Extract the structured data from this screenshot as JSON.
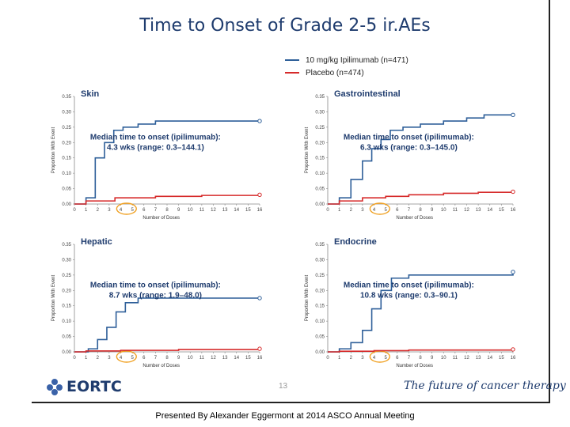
{
  "title": "Time to Onset of Grade 2-5 ir.AEs",
  "legend": [
    {
      "label": "10 mg/kg Ipilimumab (n=471)",
      "color": "#2e5f99"
    },
    {
      "label": "Placebo (n=474)",
      "color": "#d62b2b"
    }
  ],
  "footer": "Presented By Alexander Eggermont at 2014 ASCO Annual Meeting",
  "slide_number": "13",
  "logo_text": "EORTC",
  "tagline": "The future of cancer therapy",
  "highlight_color": "#f0a020",
  "chart_data": [
    {
      "type": "line",
      "step": true,
      "title": "Skin",
      "xlabel": "Number of Doses",
      "ylabel": "Proportion With Event",
      "xlim": [
        0,
        16
      ],
      "ylim": [
        0,
        0.35
      ],
      "x_ticks": [
        "0",
        "1",
        "2",
        "3",
        "4",
        "5",
        "6",
        "7",
        "8",
        "9",
        "10",
        "11",
        "12",
        "13",
        "14",
        "15",
        "16"
      ],
      "y_ticks": [
        "0.00",
        "0.05",
        "0.10",
        "0.15",
        "0.20",
        "0.25",
        "0.30",
        "0.35"
      ],
      "highlight_dose": 4.5,
      "median_text": [
        "Median time to onset (ipilimumab):",
        "4.3 wks (range: 0.3–144.1)"
      ],
      "series": [
        {
          "color": "#2e5f99",
          "x": [
            0,
            1,
            1.8,
            2.6,
            3.4,
            4.2,
            5.5,
            7,
            16
          ],
          "y": [
            0,
            0.02,
            0.15,
            0.2,
            0.24,
            0.25,
            0.26,
            0.27,
            0.27
          ]
        },
        {
          "color": "#d62b2b",
          "x": [
            0,
            1,
            3.5,
            7,
            11,
            16
          ],
          "y": [
            0,
            0.01,
            0.02,
            0.025,
            0.028,
            0.03
          ]
        }
      ]
    },
    {
      "type": "line",
      "step": true,
      "title": "Gastrointestinal",
      "xlabel": "Number of Doses",
      "ylabel": "Proportion With Event",
      "xlim": [
        0,
        16
      ],
      "ylim": [
        0,
        0.35
      ],
      "x_ticks": [
        "0",
        "1",
        "2",
        "3",
        "4",
        "5",
        "6",
        "7",
        "8",
        "9",
        "10",
        "11",
        "12",
        "13",
        "14",
        "15",
        "16"
      ],
      "y_ticks": [
        "0.00",
        "0.05",
        "0.10",
        "0.15",
        "0.20",
        "0.25",
        "0.30",
        "0.35"
      ],
      "highlight_dose": 4.5,
      "median_text": [
        "Median time to onset (ipilimumab):",
        "6.3 wks (range: 0.3–145.0)"
      ],
      "series": [
        {
          "color": "#2e5f99",
          "x": [
            0,
            1,
            2,
            3,
            3.8,
            4.6,
            5.4,
            6.5,
            8,
            10,
            12,
            13.5,
            16
          ],
          "y": [
            0,
            0.02,
            0.08,
            0.14,
            0.18,
            0.21,
            0.24,
            0.25,
            0.26,
            0.27,
            0.28,
            0.29,
            0.29
          ]
        },
        {
          "color": "#d62b2b",
          "x": [
            0,
            1,
            3,
            5,
            7,
            10,
            13,
            16
          ],
          "y": [
            0,
            0.01,
            0.02,
            0.025,
            0.03,
            0.035,
            0.038,
            0.04
          ]
        }
      ]
    },
    {
      "type": "line",
      "step": true,
      "title": "Hepatic",
      "xlabel": "Number of Doses",
      "ylabel": "Proportion With Event",
      "xlim": [
        0,
        16
      ],
      "ylim": [
        0,
        0.35
      ],
      "x_ticks": [
        "0",
        "1",
        "2",
        "3",
        "4",
        "5",
        "6",
        "7",
        "8",
        "9",
        "10",
        "11",
        "12",
        "13",
        "14",
        "15",
        "16"
      ],
      "y_ticks": [
        "0.00",
        "0.05",
        "0.10",
        "0.15",
        "0.20",
        "0.25",
        "0.30",
        "0.35"
      ],
      "highlight_dose": 4.5,
      "median_text": [
        "Median time to onset (ipilimumab):",
        "8.7 wks (range: 1.9–48.0)"
      ],
      "series": [
        {
          "color": "#2e5f99",
          "x": [
            0,
            1.2,
            2,
            2.8,
            3.6,
            4.4,
            5.5,
            16
          ],
          "y": [
            0,
            0.01,
            0.04,
            0.08,
            0.13,
            0.16,
            0.175,
            0.175
          ]
        },
        {
          "color": "#d62b2b",
          "x": [
            0,
            1,
            4,
            9,
            16
          ],
          "y": [
            0,
            0.003,
            0.005,
            0.008,
            0.01
          ]
        }
      ]
    },
    {
      "type": "line",
      "step": true,
      "title": "Endocrine",
      "xlabel": "Number of Doses",
      "ylabel": "Proportion With Event",
      "xlim": [
        0,
        16
      ],
      "ylim": [
        0,
        0.35
      ],
      "x_ticks": [
        "0",
        "1",
        "2",
        "3",
        "4",
        "5",
        "6",
        "7",
        "8",
        "9",
        "10",
        "11",
        "12",
        "13",
        "14",
        "15",
        "16"
      ],
      "y_ticks": [
        "0.00",
        "0.05",
        "0.10",
        "0.15",
        "0.20",
        "0.25",
        "0.30",
        "0.35"
      ],
      "highlight_dose": 4.5,
      "median_text": [
        "Median time to onset (ipilimumab):",
        "10.8 wks (range: 0.3–90.1)"
      ],
      "series": [
        {
          "color": "#2e5f99",
          "x": [
            0,
            1,
            2,
            3,
            3.8,
            4.6,
            5.5,
            7,
            16
          ],
          "y": [
            0,
            0.01,
            0.03,
            0.07,
            0.14,
            0.2,
            0.24,
            0.25,
            0.26
          ]
        },
        {
          "color": "#d62b2b",
          "x": [
            0,
            1,
            4,
            7,
            16
          ],
          "y": [
            0,
            0.002,
            0.004,
            0.006,
            0.008
          ]
        }
      ]
    }
  ]
}
